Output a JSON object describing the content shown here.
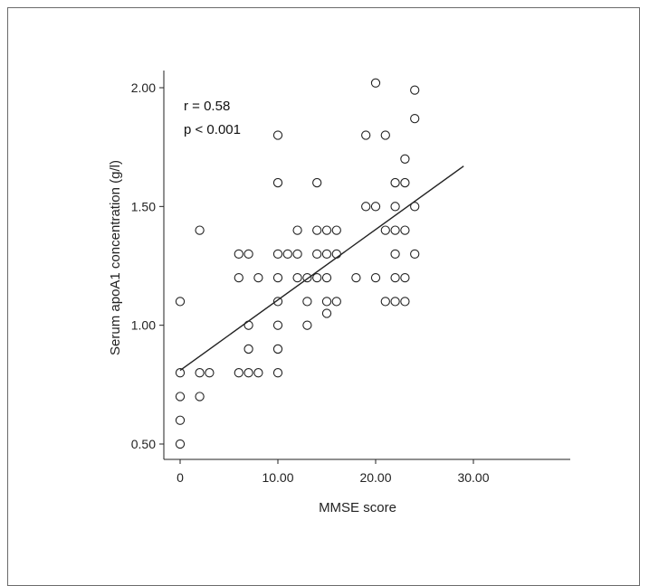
{
  "chart_data": {
    "type": "scatter",
    "xlabel": "MMSE score",
    "ylabel": "Serum apoA1 concentration (g/l)",
    "xlim": [
      -1.5,
      31
    ],
    "ylim": [
      0.45,
      2.08
    ],
    "xticks": [
      0,
      10,
      20,
      30
    ],
    "xtick_labels": [
      "0",
      "10.00",
      "20.00",
      "30.00"
    ],
    "yticks": [
      0.5,
      1.0,
      1.5,
      2.0
    ],
    "ytick_labels": [
      "0.50",
      "1.00",
      "1.50",
      "2.00"
    ],
    "annotations": [
      "r = 0.58",
      "p < 0.001"
    ],
    "grid": false,
    "points": [
      [
        0,
        1.1
      ],
      [
        0,
        0.8
      ],
      [
        0,
        0.7
      ],
      [
        0,
        0.6
      ],
      [
        0,
        0.5
      ],
      [
        2,
        1.4
      ],
      [
        2,
        0.8
      ],
      [
        2,
        0.7
      ],
      [
        3,
        0.8
      ],
      [
        6,
        1.3
      ],
      [
        6,
        1.2
      ],
      [
        6,
        0.8
      ],
      [
        7,
        1.3
      ],
      [
        7,
        1.0
      ],
      [
        7,
        0.9
      ],
      [
        7,
        0.8
      ],
      [
        8,
        1.2
      ],
      [
        8,
        0.8
      ],
      [
        10,
        1.8
      ],
      [
        10,
        1.6
      ],
      [
        10,
        1.3
      ],
      [
        10,
        1.2
      ],
      [
        10,
        1.1
      ],
      [
        10,
        1.0
      ],
      [
        10,
        0.9
      ],
      [
        10,
        0.8
      ],
      [
        11,
        1.3
      ],
      [
        12,
        1.4
      ],
      [
        12,
        1.3
      ],
      [
        12,
        1.2
      ],
      [
        13,
        1.2
      ],
      [
        13,
        1.1
      ],
      [
        13,
        1.0
      ],
      [
        14,
        1.6
      ],
      [
        14,
        1.4
      ],
      [
        14,
        1.3
      ],
      [
        14,
        1.2
      ],
      [
        15,
        1.4
      ],
      [
        15,
        1.3
      ],
      [
        15,
        1.2
      ],
      [
        15,
        1.1
      ],
      [
        15,
        1.05
      ],
      [
        16,
        1.4
      ],
      [
        16,
        1.3
      ],
      [
        16,
        1.1
      ],
      [
        18,
        1.2
      ],
      [
        19,
        1.8
      ],
      [
        19,
        1.5
      ],
      [
        20,
        2.02
      ],
      [
        20,
        1.5
      ],
      [
        20,
        1.2
      ],
      [
        21,
        1.8
      ],
      [
        21,
        1.4
      ],
      [
        21,
        1.1
      ],
      [
        22,
        1.6
      ],
      [
        22,
        1.5
      ],
      [
        22,
        1.4
      ],
      [
        22,
        1.3
      ],
      [
        22,
        1.2
      ],
      [
        22,
        1.1
      ],
      [
        23,
        1.7
      ],
      [
        23,
        1.6
      ],
      [
        23,
        1.4
      ],
      [
        23,
        1.2
      ],
      [
        23,
        1.1
      ],
      [
        24,
        1.99
      ],
      [
        24,
        1.87
      ],
      [
        24,
        1.5
      ],
      [
        24,
        1.3
      ]
    ],
    "regression_line": {
      "x": [
        0,
        29
      ],
      "y": [
        0.81,
        1.67
      ]
    }
  }
}
